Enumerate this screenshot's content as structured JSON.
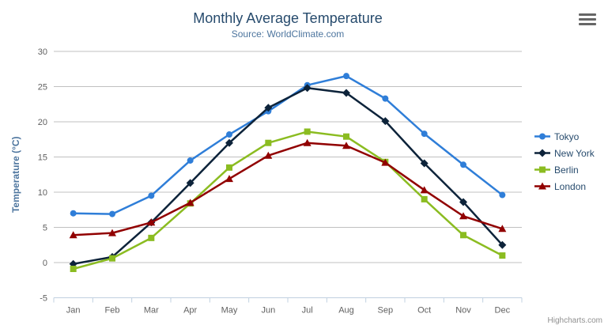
{
  "header": {
    "title": "Monthly Average Temperature",
    "subtitle": "Source: WorldClimate.com"
  },
  "credit": "Highcharts.com",
  "colors": {
    "gridline": "#c0c0c0",
    "axis_line": "#c0d0e0",
    "axis_label": "#606060",
    "axis_title": "#4d759e",
    "title": "#274b6d",
    "subtitle": "#4d759e",
    "legend_text": "#274b6d",
    "credit": "#909090",
    "menu_icon": "#666666"
  },
  "chart_data": {
    "type": "line",
    "title": "Monthly Average Temperature",
    "subtitle": "Source: WorldClimate.com",
    "categories": [
      "Jan",
      "Feb",
      "Mar",
      "Apr",
      "May",
      "Jun",
      "Jul",
      "Aug",
      "Sep",
      "Oct",
      "Nov",
      "Dec"
    ],
    "series": [
      {
        "name": "Tokyo",
        "color": "#2f7ed8",
        "marker": "circle",
        "values": [
          7.0,
          6.9,
          9.5,
          14.5,
          18.2,
          21.5,
          25.2,
          26.5,
          23.3,
          18.3,
          13.9,
          9.6
        ]
      },
      {
        "name": "New York",
        "color": "#0d233a",
        "marker": "diamond",
        "values": [
          -0.2,
          0.8,
          5.7,
          11.3,
          17.0,
          22.0,
          24.8,
          24.1,
          20.1,
          14.1,
          8.6,
          2.5
        ]
      },
      {
        "name": "Berlin",
        "color": "#8bbc21",
        "marker": "square",
        "values": [
          -0.9,
          0.6,
          3.5,
          8.4,
          13.5,
          17.0,
          18.6,
          17.9,
          14.3,
          9.0,
          3.9,
          1.0
        ]
      },
      {
        "name": "London",
        "color": "#910000",
        "marker": "triangle",
        "values": [
          3.9,
          4.2,
          5.7,
          8.5,
          11.9,
          15.2,
          17.0,
          16.6,
          14.2,
          10.3,
          6.6,
          4.8
        ]
      }
    ],
    "xlabel": "",
    "ylabel": "Temperature (°C)",
    "ylim": [
      -5,
      30
    ],
    "ytick": 5,
    "grid": true,
    "legend_position": "right"
  }
}
